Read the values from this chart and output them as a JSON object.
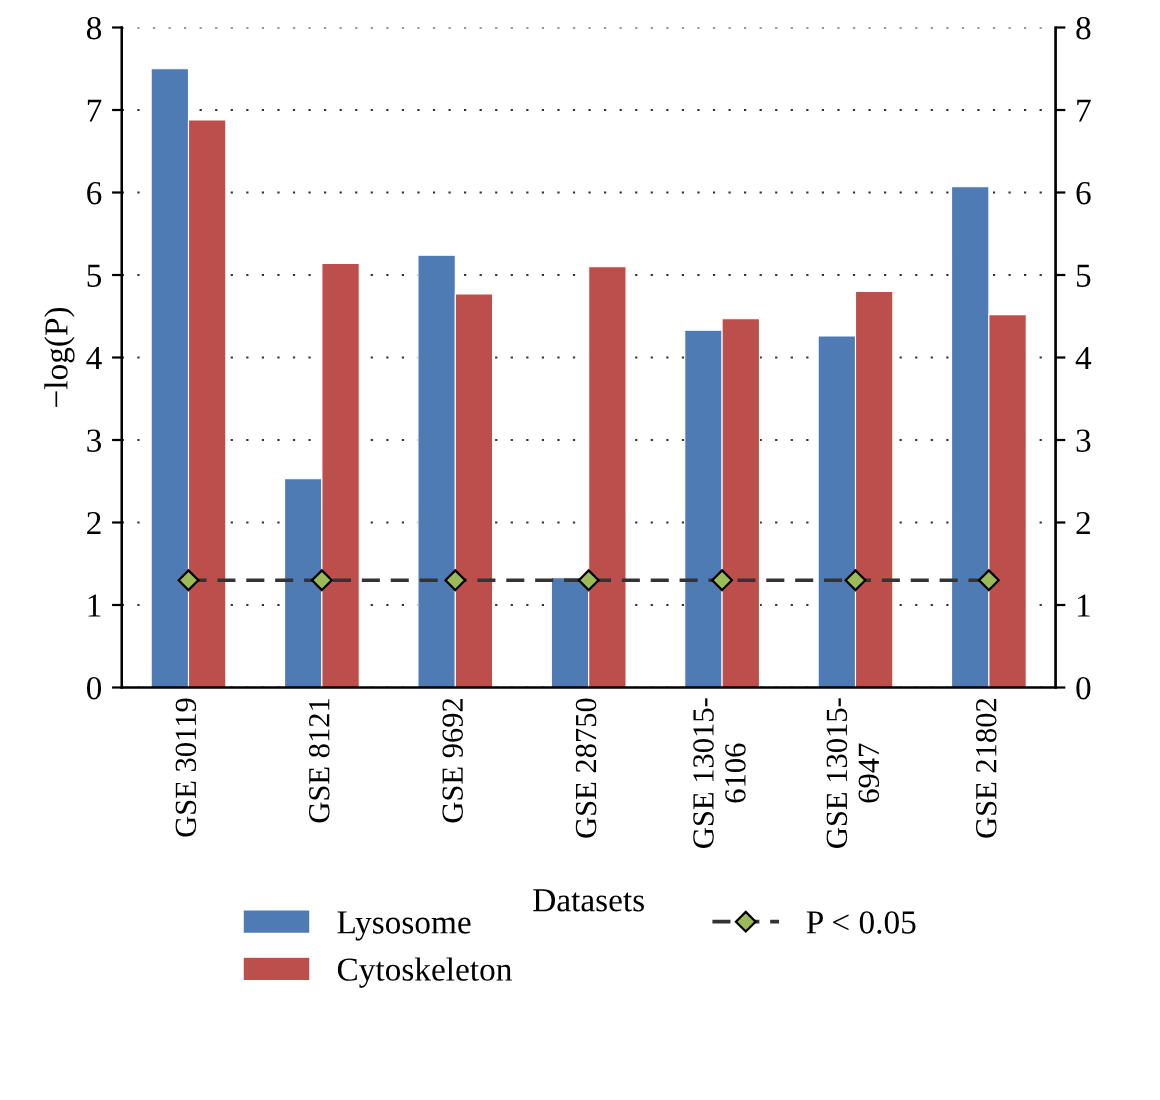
{
  "chart_data": {
    "type": "bar",
    "xlabel": "Datasets",
    "ylabel": "−log(P)",
    "categories": [
      "GSE 30119",
      "GSE 8121",
      "GSE 9692",
      "GSE 28750",
      "GSE 13015-\n6106",
      "GSE 13015-\n6947",
      "GSE 21802"
    ],
    "series": [
      {
        "name": "Lysosome",
        "color": "#4f7bb5",
        "values": [
          7.5,
          2.53,
          5.24,
          1.33,
          4.33,
          4.26,
          6.07
        ]
      },
      {
        "name": "Cytoskeleton",
        "color": "#bc4f4c",
        "values": [
          6.88,
          5.14,
          4.77,
          5.1,
          4.47,
          4.8,
          4.52
        ]
      },
      {
        "name": "P < 0.05",
        "type": "line",
        "color": "#9bbb59",
        "marker": "diamond",
        "line_style": "dashed",
        "values": [
          1.3,
          1.3,
          1.3,
          1.3,
          1.3,
          1.3,
          1.3
        ]
      }
    ],
    "ylim": [
      0,
      8
    ],
    "yticks": [
      0,
      1,
      2,
      3,
      4,
      5,
      6,
      7,
      8
    ],
    "y2lim": [
      0,
      8
    ],
    "y2ticks": [
      0,
      1,
      2,
      3,
      4,
      5,
      6,
      7,
      8
    ],
    "grid": "y",
    "legend": "bottom"
  }
}
